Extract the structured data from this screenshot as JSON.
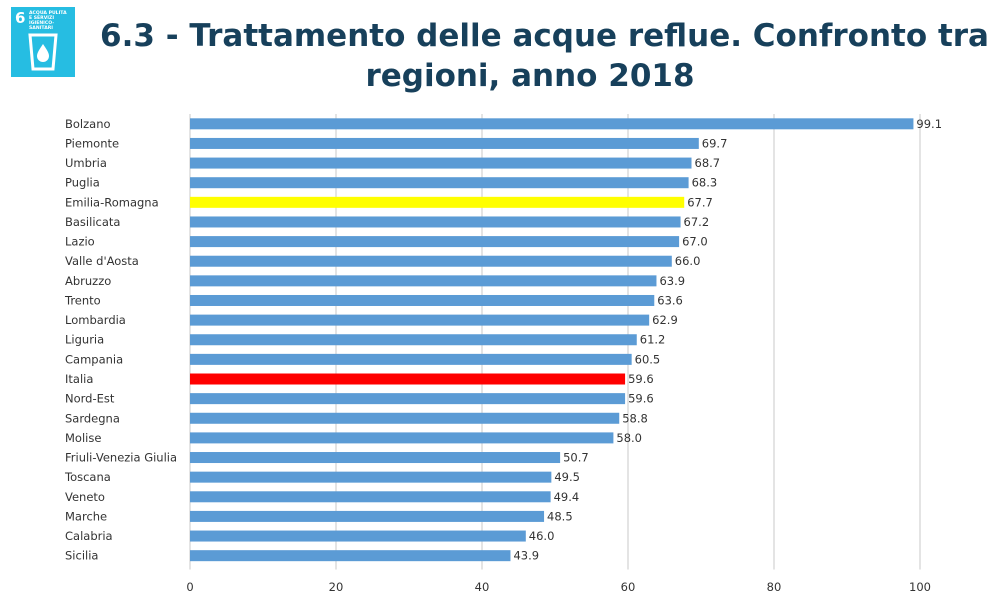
{
  "badge": {
    "number": "6",
    "text": [
      "ACQUA PULITA",
      "E SERVIZI",
      "IGIENICO-SANITARI"
    ],
    "icon": "water-drop-glass-icon",
    "color": "#26bde2"
  },
  "title_line1": "6.3 - Trattamento delle acque reflue. Confronto tra",
  "title_line2": "regioni, anno 2018",
  "chart_data": {
    "type": "bar",
    "orientation": "horizontal",
    "categories": [
      "Bolzano",
      "Piemonte",
      "Umbria",
      "Puglia",
      "Emilia-Romagna",
      "Basilicata",
      "Lazio",
      "Valle d'Aosta",
      "Abruzzo",
      "Trento",
      "Lombardia",
      "Liguria",
      "Campania",
      "Italia",
      "Nord-Est",
      "Sardegna",
      "Molise",
      "Friuli-Venezia Giulia",
      "Toscana",
      "Veneto",
      "Marche",
      "Calabria",
      "Sicilia"
    ],
    "values": [
      99.1,
      69.7,
      68.7,
      68.3,
      67.7,
      67.2,
      67.0,
      66.0,
      63.9,
      63.6,
      62.9,
      61.2,
      60.5,
      59.6,
      59.6,
      58.8,
      58.0,
      50.7,
      49.5,
      49.4,
      48.5,
      46.0,
      43.9
    ],
    "value_labels": [
      "99.1",
      "69.7",
      "68.7",
      "68.3",
      "67.7",
      "67.2",
      "67.0",
      "66.0",
      "63.9",
      "63.6",
      "62.9",
      "61.2",
      "60.5",
      "59.6",
      "59.6",
      "58.8",
      "58.0",
      "50.7",
      "49.5",
      "49.4",
      "48.5",
      "46.0",
      "43.9"
    ],
    "bar_colors": {
      "default": "#5b9bd5",
      "Emilia-Romagna": "#ffff00",
      "Italia": "#ff0000"
    },
    "xlim": [
      0,
      100
    ],
    "x_ticks": [
      0,
      20,
      40,
      60,
      80,
      100
    ],
    "grid": true,
    "legend": false
  }
}
